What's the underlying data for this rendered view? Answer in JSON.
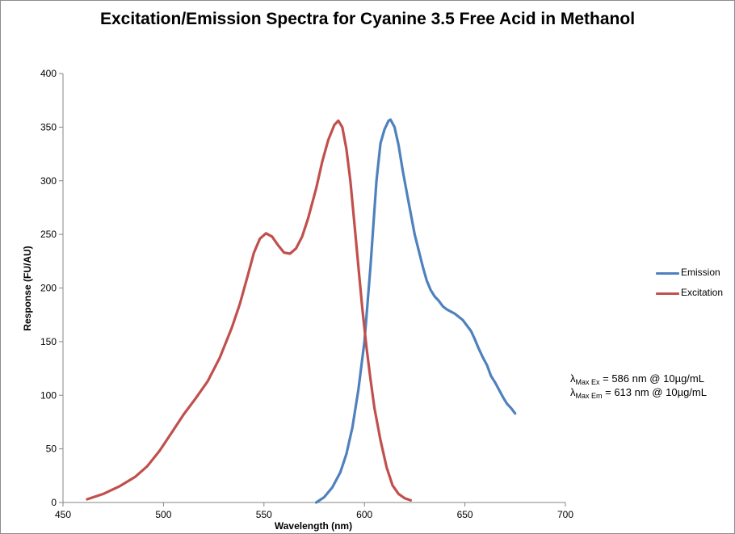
{
  "chart_data": {
    "type": "line",
    "title": "Excitation/Emission Spectra for Cyanine 3.5 Free Acid in Methanol",
    "xlabel": "Wavelength (nm)",
    "ylabel": "Response (FU/AU)",
    "xlim": [
      450,
      700
    ],
    "ylim": [
      0,
      400
    ],
    "xticks": [
      "450",
      "500",
      "550",
      "600",
      "650",
      "700"
    ],
    "yticks": [
      "0",
      "50",
      "100",
      "150",
      "200",
      "250",
      "300",
      "350",
      "400"
    ],
    "grid": false,
    "legend_position": "right",
    "series": [
      {
        "name": "Emission",
        "color": "#4f81bd",
        "points": [
          [
            576,
            0
          ],
          [
            580,
            5
          ],
          [
            584,
            14
          ],
          [
            588,
            28
          ],
          [
            591,
            45
          ],
          [
            594,
            70
          ],
          [
            597,
            105
          ],
          [
            600,
            150
          ],
          [
            603,
            220
          ],
          [
            606,
            300
          ],
          [
            608,
            335
          ],
          [
            610,
            348
          ],
          [
            612,
            356
          ],
          [
            613,
            357
          ],
          [
            615,
            350
          ],
          [
            617,
            333
          ],
          [
            619,
            310
          ],
          [
            621,
            290
          ],
          [
            623,
            270
          ],
          [
            625,
            250
          ],
          [
            627,
            235
          ],
          [
            629,
            220
          ],
          [
            631,
            207
          ],
          [
            633,
            198
          ],
          [
            635,
            192
          ],
          [
            637,
            188
          ],
          [
            639,
            183
          ],
          [
            641,
            180
          ],
          [
            643,
            178
          ],
          [
            645,
            176
          ],
          [
            647,
            173
          ],
          [
            649,
            170
          ],
          [
            651,
            165
          ],
          [
            653,
            160
          ],
          [
            655,
            152
          ],
          [
            657,
            143
          ],
          [
            659,
            135
          ],
          [
            661,
            128
          ],
          [
            663,
            118
          ],
          [
            665,
            112
          ],
          [
            667,
            105
          ],
          [
            669,
            98
          ],
          [
            671,
            92
          ],
          [
            673,
            88
          ],
          [
            675,
            83
          ]
        ]
      },
      {
        "name": "Excitation",
        "color": "#c0504d",
        "points": [
          [
            462,
            3
          ],
          [
            470,
            8
          ],
          [
            478,
            15
          ],
          [
            486,
            24
          ],
          [
            492,
            34
          ],
          [
            498,
            48
          ],
          [
            504,
            65
          ],
          [
            510,
            82
          ],
          [
            516,
            97
          ],
          [
            522,
            113
          ],
          [
            528,
            135
          ],
          [
            534,
            163
          ],
          [
            538,
            185
          ],
          [
            542,
            212
          ],
          [
            545,
            233
          ],
          [
            548,
            246
          ],
          [
            551,
            251
          ],
          [
            554,
            248
          ],
          [
            557,
            240
          ],
          [
            560,
            233
          ],
          [
            563,
            232
          ],
          [
            566,
            237
          ],
          [
            569,
            248
          ],
          [
            572,
            265
          ],
          [
            576,
            293
          ],
          [
            579,
            318
          ],
          [
            582,
            338
          ],
          [
            585,
            352
          ],
          [
            587,
            356
          ],
          [
            589,
            350
          ],
          [
            591,
            330
          ],
          [
            593,
            300
          ],
          [
            595,
            260
          ],
          [
            597,
            220
          ],
          [
            599,
            180
          ],
          [
            601,
            145
          ],
          [
            603,
            115
          ],
          [
            605,
            88
          ],
          [
            608,
            58
          ],
          [
            611,
            33
          ],
          [
            614,
            16
          ],
          [
            617,
            8
          ],
          [
            620,
            4
          ],
          [
            623,
            2
          ]
        ]
      }
    ]
  },
  "annotations": {
    "line1": {
      "lambda": "λ",
      "sub": "Max Ex",
      "rest": " = 586 nm @ 10µg/mL"
    },
    "line2": {
      "lambda": "λ",
      "sub": "Max Em",
      "rest": " = 613 nm @ 10µg/mL"
    }
  }
}
